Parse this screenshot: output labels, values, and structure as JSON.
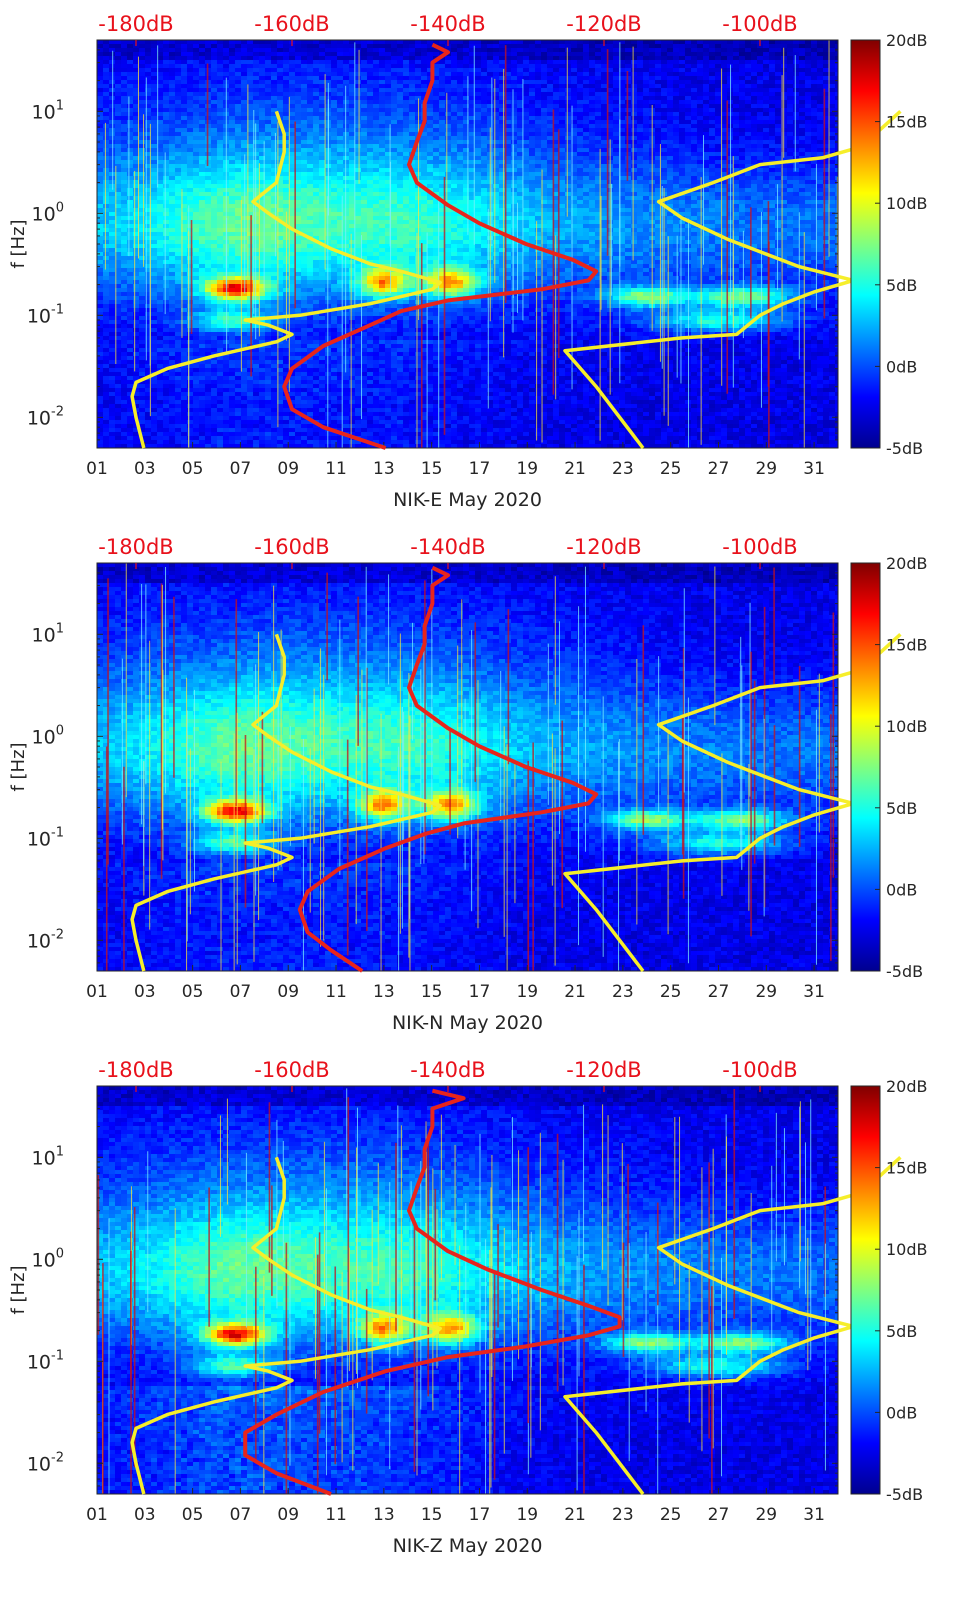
{
  "chart_data": [
    {
      "type": "heatmap",
      "title": "",
      "xlabel": "NIK-E May 2020",
      "ylabel": "f [Hz]",
      "x_ticks": [
        "01",
        "03",
        "05",
        "07",
        "09",
        "11",
        "13",
        "15",
        "17",
        "19",
        "21",
        "23",
        "25",
        "27",
        "29",
        "31"
      ],
      "x_range_days": [
        1,
        32
      ],
      "y_scale": "log",
      "ylim": [
        0.005,
        50
      ],
      "y_ticks": [
        {
          "value": 10,
          "base": "10",
          "exp": "1"
        },
        {
          "value": 1,
          "base": "10",
          "exp": "0"
        },
        {
          "value": 0.1,
          "base": "10",
          "exp": "-1"
        },
        {
          "value": 0.01,
          "base": "10",
          "exp": "-2"
        }
      ],
      "top_axis": {
        "ticks": [
          "-180dB",
          "-160dB",
          "-140dB",
          "-120dB",
          "-100dB"
        ],
        "range_db": [
          -185,
          -90
        ],
        "color": "#e8111b"
      },
      "colorbar": {
        "range_db": [
          -5,
          20
        ],
        "ticks": [
          "20dB",
          "15dB",
          "10dB",
          "5dB",
          "0dB",
          "-5dB"
        ]
      },
      "series": [
        {
          "color": "#e8241b",
          "points": [
            [
              -148,
              0.005
            ],
            [
              -156,
              0.008
            ],
            [
              -160,
              0.012
            ],
            [
              -161,
              0.02
            ],
            [
              -160,
              0.03
            ],
            [
              -156,
              0.05
            ],
            [
              -150,
              0.08
            ],
            [
              -146,
              0.11
            ],
            [
              -140,
              0.14
            ],
            [
              -128,
              0.18
            ],
            [
              -122,
              0.22
            ],
            [
              -121,
              0.27
            ],
            [
              -124,
              0.35
            ],
            [
              -130,
              0.5
            ],
            [
              -136,
              0.8
            ],
            [
              -140,
              1.2
            ],
            [
              -144,
              2
            ],
            [
              -145,
              3
            ],
            [
              -144,
              5
            ],
            [
              -143,
              8
            ],
            [
              -143,
              12
            ],
            [
              -142,
              20
            ],
            [
              -142,
              30
            ],
            [
              -140,
              38
            ],
            [
              -142,
              45
            ]
          ]
        },
        {
          "color": "#f6ee2a",
          "points": [
            [
              -179,
              0.005
            ],
            [
              -180,
              0.01
            ],
            [
              -180.5,
              0.016
            ],
            [
              -180,
              0.022
            ],
            [
              -176,
              0.03
            ],
            [
              -170,
              0.04
            ],
            [
              -162,
              0.055
            ],
            [
              -160,
              0.065
            ],
            [
              -163,
              0.08
            ],
            [
              -166,
              0.09
            ],
            [
              -159,
              0.1
            ],
            [
              -150,
              0.13
            ],
            [
              -142,
              0.18
            ],
            [
              -141,
              0.21
            ],
            [
              -146,
              0.27
            ],
            [
              -150,
              0.32
            ],
            [
              -155,
              0.45
            ],
            [
              -160,
              0.7
            ],
            [
              -163,
              1.0
            ],
            [
              -165,
              1.3
            ],
            [
              -162,
              2
            ],
            [
              -161,
              4
            ],
            [
              -161,
              6
            ],
            [
              -162,
              10
            ]
          ]
        },
        {
          "color": "#f6ee2a",
          "points": [
            [
              -115,
              0.005
            ],
            [
              -121,
              0.02
            ],
            [
              -125,
              0.045
            ],
            [
              -110,
              0.06
            ],
            [
              -103,
              0.065
            ],
            [
              -100,
              0.1
            ],
            [
              -97,
              0.13
            ],
            [
              -93,
              0.17
            ],
            [
              -88,
              0.22
            ],
            [
              -95,
              0.3
            ],
            [
              -104,
              0.55
            ],
            [
              -110,
              0.9
            ],
            [
              -113,
              1.3
            ],
            [
              -106,
              2
            ],
            [
              -100,
              3
            ],
            [
              -92,
              3.5
            ],
            [
              -87,
              4.5
            ],
            [
              -82,
              10
            ]
          ]
        }
      ]
    },
    {
      "type": "heatmap",
      "title": "",
      "xlabel": "NIK-N May 2020",
      "ylabel": "f [Hz]",
      "x_ticks": [
        "01",
        "03",
        "05",
        "07",
        "09",
        "11",
        "13",
        "15",
        "17",
        "19",
        "21",
        "23",
        "25",
        "27",
        "29",
        "31"
      ],
      "x_range_days": [
        1,
        32
      ],
      "y_scale": "log",
      "ylim": [
        0.005,
        50
      ],
      "y_ticks": [
        {
          "value": 10,
          "base": "10",
          "exp": "1"
        },
        {
          "value": 1,
          "base": "10",
          "exp": "0"
        },
        {
          "value": 0.1,
          "base": "10",
          "exp": "-1"
        },
        {
          "value": 0.01,
          "base": "10",
          "exp": "-2"
        }
      ],
      "top_axis": {
        "ticks": [
          "-180dB",
          "-160dB",
          "-140dB",
          "-120dB",
          "-100dB"
        ],
        "range_db": [
          -185,
          -90
        ],
        "color": "#e8111b"
      },
      "colorbar": {
        "range_db": [
          -5,
          20
        ],
        "ticks": [
          "20dB",
          "15dB",
          "10dB",
          "5dB",
          "0dB",
          "-5dB"
        ]
      },
      "series": [
        {
          "color": "#e8241b",
          "points": [
            [
              -151,
              0.005
            ],
            [
              -155,
              0.008
            ],
            [
              -158,
              0.012
            ],
            [
              -159,
              0.02
            ],
            [
              -158,
              0.03
            ],
            [
              -154,
              0.05
            ],
            [
              -148,
              0.08
            ],
            [
              -143,
              0.11
            ],
            [
              -138,
              0.14
            ],
            [
              -128,
              0.18
            ],
            [
              -122,
              0.22
            ],
            [
              -121,
              0.27
            ],
            [
              -124,
              0.35
            ],
            [
              -130,
              0.5
            ],
            [
              -136,
              0.8
            ],
            [
              -140,
              1.2
            ],
            [
              -144,
              2
            ],
            [
              -145,
              3
            ],
            [
              -144,
              5
            ],
            [
              -143,
              8
            ],
            [
              -143,
              12
            ],
            [
              -142,
              20
            ],
            [
              -142,
              30
            ],
            [
              -140,
              38
            ],
            [
              -142,
              45
            ]
          ]
        },
        {
          "color": "#f6ee2a",
          "points": [
            [
              -179,
              0.005
            ],
            [
              -180,
              0.01
            ],
            [
              -180.5,
              0.016
            ],
            [
              -180,
              0.022
            ],
            [
              -176,
              0.03
            ],
            [
              -170,
              0.04
            ],
            [
              -162,
              0.055
            ],
            [
              -160,
              0.065
            ],
            [
              -163,
              0.08
            ],
            [
              -166,
              0.09
            ],
            [
              -159,
              0.1
            ],
            [
              -150,
              0.13
            ],
            [
              -142,
              0.18
            ],
            [
              -141,
              0.21
            ],
            [
              -146,
              0.27
            ],
            [
              -150,
              0.32
            ],
            [
              -155,
              0.45
            ],
            [
              -160,
              0.7
            ],
            [
              -163,
              1.0
            ],
            [
              -165,
              1.3
            ],
            [
              -162,
              2
            ],
            [
              -161,
              4
            ],
            [
              -161,
              6
            ],
            [
              -162,
              10
            ]
          ]
        },
        {
          "color": "#f6ee2a",
          "points": [
            [
              -115,
              0.005
            ],
            [
              -121,
              0.02
            ],
            [
              -125,
              0.045
            ],
            [
              -110,
              0.06
            ],
            [
              -103,
              0.065
            ],
            [
              -100,
              0.1
            ],
            [
              -97,
              0.13
            ],
            [
              -93,
              0.17
            ],
            [
              -88,
              0.22
            ],
            [
              -95,
              0.3
            ],
            [
              -104,
              0.55
            ],
            [
              -110,
              0.9
            ],
            [
              -113,
              1.3
            ],
            [
              -106,
              2
            ],
            [
              -100,
              3
            ],
            [
              -92,
              3.5
            ],
            [
              -87,
              4.5
            ],
            [
              -82,
              10
            ]
          ]
        }
      ]
    },
    {
      "type": "heatmap",
      "title": "",
      "xlabel": "NIK-Z May 2020",
      "ylabel": "f [Hz]",
      "x_ticks": [
        "01",
        "03",
        "05",
        "07",
        "09",
        "11",
        "13",
        "15",
        "17",
        "19",
        "21",
        "23",
        "25",
        "27",
        "29",
        "31"
      ],
      "x_range_days": [
        1,
        32
      ],
      "y_scale": "log",
      "ylim": [
        0.005,
        50
      ],
      "y_ticks": [
        {
          "value": 10,
          "base": "10",
          "exp": "1"
        },
        {
          "value": 1,
          "base": "10",
          "exp": "0"
        },
        {
          "value": 0.1,
          "base": "10",
          "exp": "-1"
        },
        {
          "value": 0.01,
          "base": "10",
          "exp": "-2"
        }
      ],
      "top_axis": {
        "ticks": [
          "-180dB",
          "-160dB",
          "-140dB",
          "-120dB",
          "-100dB"
        ],
        "range_db": [
          -185,
          -90
        ],
        "color": "#e8111b"
      },
      "colorbar": {
        "range_db": [
          -5,
          20
        ],
        "ticks": [
          "20dB",
          "15dB",
          "10dB",
          "5dB",
          "0dB",
          "-5dB"
        ]
      },
      "series": [
        {
          "color": "#e8241b",
          "points": [
            [
              -155,
              0.005
            ],
            [
              -162,
              0.008
            ],
            [
              -166,
              0.012
            ],
            [
              -166,
              0.02
            ],
            [
              -162,
              0.03
            ],
            [
              -156,
              0.05
            ],
            [
              -148,
              0.08
            ],
            [
              -140,
              0.11
            ],
            [
              -130,
              0.14
            ],
            [
              -122,
              0.18
            ],
            [
              -118,
              0.22
            ],
            [
              -118,
              0.27
            ],
            [
              -122,
              0.35
            ],
            [
              -128,
              0.5
            ],
            [
              -135,
              0.8
            ],
            [
              -140,
              1.2
            ],
            [
              -144,
              2
            ],
            [
              -145,
              3
            ],
            [
              -144,
              5
            ],
            [
              -143,
              8
            ],
            [
              -143,
              12
            ],
            [
              -142,
              20
            ],
            [
              -142,
              30
            ],
            [
              -138,
              38
            ],
            [
              -142,
              45
            ]
          ]
        },
        {
          "color": "#f6ee2a",
          "points": [
            [
              -179,
              0.005
            ],
            [
              -180,
              0.01
            ],
            [
              -180.5,
              0.016
            ],
            [
              -180,
              0.022
            ],
            [
              -176,
              0.03
            ],
            [
              -170,
              0.04
            ],
            [
              -162,
              0.055
            ],
            [
              -160,
              0.065
            ],
            [
              -163,
              0.08
            ],
            [
              -166,
              0.09
            ],
            [
              -159,
              0.1
            ],
            [
              -150,
              0.13
            ],
            [
              -142,
              0.18
            ],
            [
              -141,
              0.21
            ],
            [
              -146,
              0.27
            ],
            [
              -150,
              0.32
            ],
            [
              -155,
              0.45
            ],
            [
              -160,
              0.7
            ],
            [
              -163,
              1.0
            ],
            [
              -165,
              1.3
            ],
            [
              -162,
              2
            ],
            [
              -161,
              4
            ],
            [
              -161,
              6
            ],
            [
              -162,
              10
            ]
          ]
        },
        {
          "color": "#f6ee2a",
          "points": [
            [
              -115,
              0.005
            ],
            [
              -121,
              0.02
            ],
            [
              -125,
              0.045
            ],
            [
              -110,
              0.06
            ],
            [
              -103,
              0.065
            ],
            [
              -100,
              0.1
            ],
            [
              -97,
              0.13
            ],
            [
              -93,
              0.17
            ],
            [
              -88,
              0.22
            ],
            [
              -95,
              0.3
            ],
            [
              -104,
              0.55
            ],
            [
              -110,
              0.9
            ],
            [
              -113,
              1.3
            ],
            [
              -106,
              2
            ],
            [
              -100,
              3
            ],
            [
              -92,
              3.5
            ],
            [
              -87,
              4.5
            ],
            [
              -82,
              10
            ]
          ]
        }
      ]
    }
  ]
}
